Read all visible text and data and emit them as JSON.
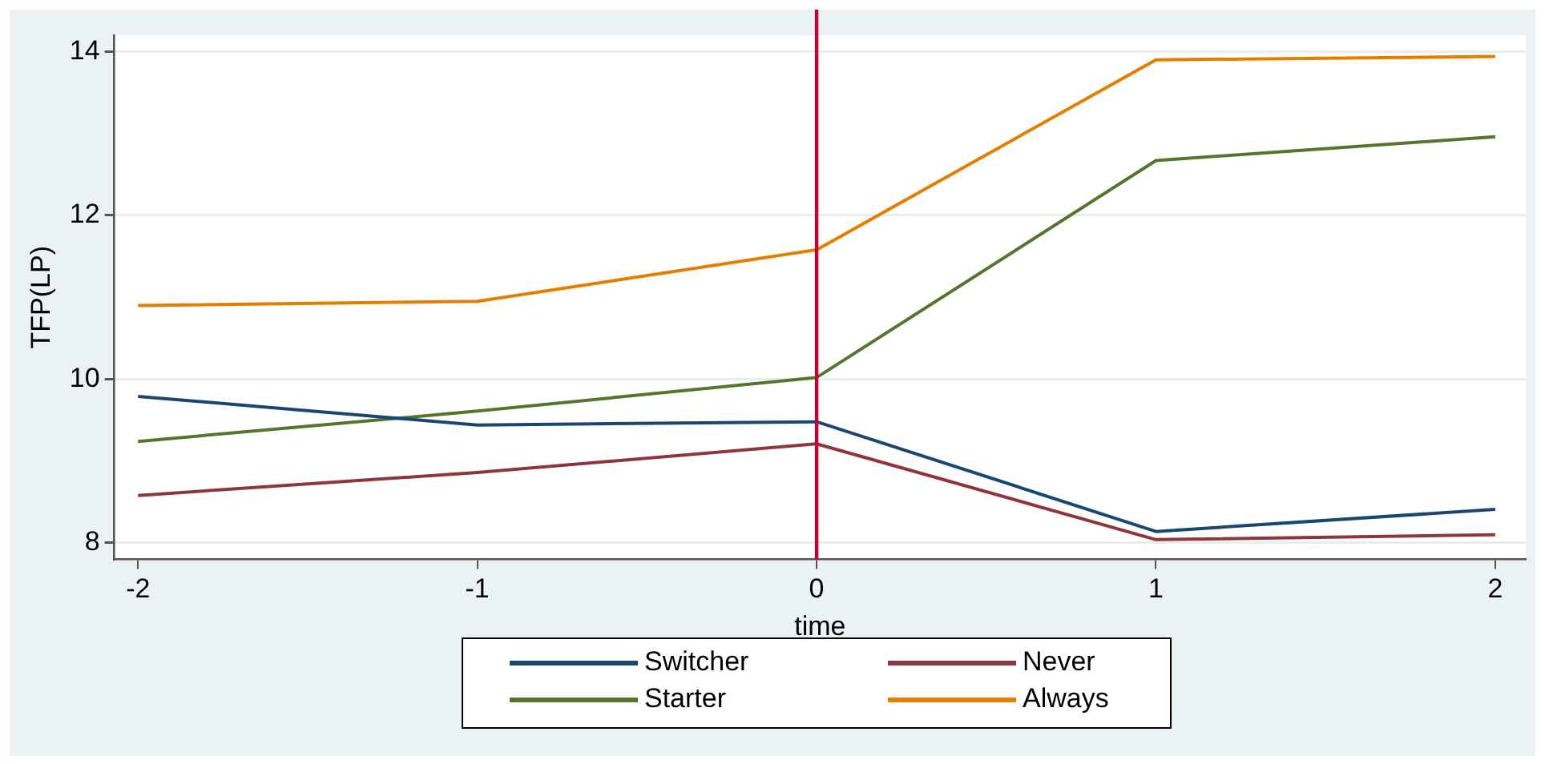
{
  "chart_data": {
    "type": "line",
    "xlabel": "time",
    "ylabel": "TFP(LP)",
    "x": [
      -2,
      -1,
      0,
      1,
      2
    ],
    "series": [
      {
        "name": "Switcher",
        "color": "#1a476f",
        "values": [
          9.79,
          9.44,
          9.48,
          8.14,
          8.41
        ]
      },
      {
        "name": "Never",
        "color": "#90353b",
        "values": [
          8.58,
          8.86,
          9.21,
          8.04,
          8.1
        ]
      },
      {
        "name": "Starter",
        "color": "#55752f",
        "values": [
          9.24,
          9.61,
          10.02,
          12.67,
          12.96
        ]
      },
      {
        "name": "Always",
        "color": "#e37e00",
        "values": [
          10.9,
          10.95,
          11.58,
          13.9,
          13.94
        ]
      }
    ],
    "xlim": [
      -2.07,
      2.09
    ],
    "xticks": [
      -2,
      -1,
      0,
      1,
      2
    ],
    "ylim": [
      7.8,
      14.2
    ],
    "yticks": [
      8,
      10,
      12,
      14
    ],
    "ref_lines": [
      {
        "axis": "x",
        "value": 0,
        "color": "#c10534"
      }
    ],
    "grid": "y",
    "legend": "bottom",
    "marker": "none",
    "line_style": "solid"
  }
}
